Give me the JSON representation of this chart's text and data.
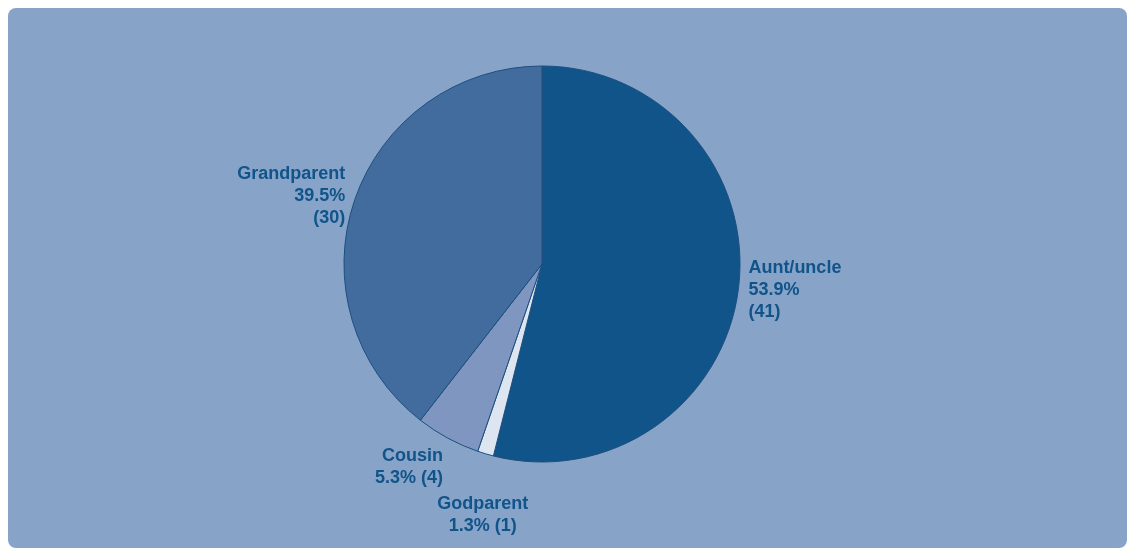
{
  "chart_data": {
    "type": "pie",
    "categories": [
      "Aunt/uncle",
      "Godparent",
      "Cousin",
      "Grandparent"
    ],
    "values": [
      41,
      1,
      4,
      30
    ],
    "colors": [
      "#10548a",
      "#dde6f0",
      "#7f97c0",
      "#436c9e"
    ],
    "value_labels": [
      "53.9% (41)",
      "1.3% (1)",
      "5.3% (4)",
      "39.5% (30)"
    ]
  }
}
